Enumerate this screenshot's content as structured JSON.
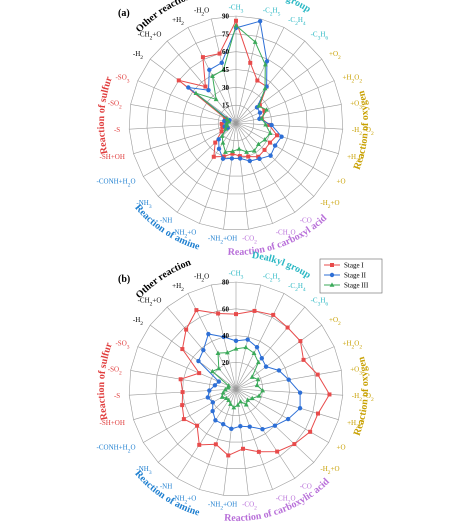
{
  "chart_data": [
    {
      "panel_label": "(a)",
      "type": "radar",
      "rmax": 90,
      "ring_step": 15,
      "tick_labels": [
        "15",
        "30",
        "45",
        "60",
        "75",
        "90"
      ],
      "categories": [
        "-CH3",
        "-C2H5",
        "-C2H4",
        "-C3H6",
        "+O2",
        "+H2O2",
        "+O3",
        "-H2+O2",
        "+H2O",
        "+O",
        "-H2+O",
        "-CO",
        "-CH2O",
        "-CO2",
        "-NH2+OH",
        "-NH2+O",
        "-NH",
        "-NH3",
        "-CONH+H2O",
        "-SH+OH",
        "-S",
        "-SO2",
        "-SO3",
        "-H2",
        "-CH2+O",
        "+H2",
        "-H2O"
      ],
      "groups": [
        {
          "name": "Dealkyl group",
          "color": "#2BB8C4",
          "categories": [
            "-CH3",
            "-C2H5",
            "-C2H4",
            "-C3H6"
          ]
        },
        {
          "name": "Reaction of oxygen",
          "color": "#C8A000",
          "categories": [
            "+O2",
            "+H2O2",
            "+O3",
            "-H2+O2",
            "+H2O",
            "+O",
            "-H2+O"
          ]
        },
        {
          "name": "Reaction of carboxyl acid",
          "color": "#B86FD9",
          "categories": [
            "-CO",
            "-CH2O",
            "-CO2"
          ]
        },
        {
          "name": "Reaction of amine",
          "color": "#1E7FD0",
          "categories": [
            "-NH2+OH",
            "-NH2+O",
            "-NH",
            "-NH3",
            "-CONH+H2O"
          ]
        },
        {
          "name": "Reaction of sulfur",
          "color": "#E03C3C",
          "categories": [
            "-SH+OH",
            "-S",
            "-SO2",
            "-SO3"
          ]
        },
        {
          "name": "Other reaction",
          "color": "#000000",
          "categories": [
            "-H2",
            "-CH2+O",
            "+H2",
            "-H2O"
          ]
        }
      ],
      "series": [
        {
          "name": "Stage I",
          "color": "#E84B4B",
          "marker": "square",
          "values": [
            86,
            52,
            40,
            40,
            25,
            26,
            22,
            28,
            36,
            33,
            33,
            34,
            30,
            28,
            26,
            30,
            34,
            24,
            14,
            12,
            12,
            8,
            10,
            60,
            40,
            62,
            60
          ]
        },
        {
          "name": "Stage II",
          "color": "#2D6FD6",
          "marker": "circle",
          "values": [
            80,
            88,
            58,
            40,
            22,
            22,
            20,
            30,
            40,
            38,
            40,
            36,
            34,
            30,
            30,
            32,
            26,
            20,
            8,
            10,
            8,
            10,
            6,
            50,
            36,
            50,
            52
          ]
        },
        {
          "name": "Stage III",
          "color": "#3BAA5A",
          "marker": "triangle",
          "values": [
            82,
            70,
            55,
            38,
            24,
            28,
            22,
            25,
            30,
            28,
            26,
            28,
            26,
            22,
            24,
            26,
            20,
            16,
            10,
            8,
            8,
            6,
            8,
            42,
            26,
            44,
            46
          ]
        }
      ]
    },
    {
      "panel_label": "(b)",
      "type": "radar",
      "rmax": 80,
      "ring_step": 20,
      "tick_labels": [
        "20",
        "40",
        "60",
        "80"
      ],
      "categories": [
        "-CH3",
        "-C2H5",
        "-C2H4",
        "-C3H6",
        "+O2",
        "+H2O2",
        "+O3",
        "-H2+O2",
        "+H2O",
        "+O",
        "-H2+O",
        "-CO",
        "-CH2O",
        "-CO2",
        "-NH2+OH",
        "-NH2+O",
        "-NH",
        "-NH3",
        "-CONH+H2O",
        "-SH+OH",
        "-S",
        "-SO2",
        "-SO3",
        "-H2",
        "-CH2+O",
        "+H2",
        "-H2O"
      ],
      "groups": [
        {
          "name": "Dealkyl group",
          "color": "#2BB8C4",
          "categories": [
            "-CH3",
            "-C2H5",
            "-C2H4",
            "-C3H6"
          ]
        },
        {
          "name": "Reaction of oxygen",
          "color": "#C8A000",
          "categories": [
            "+O2",
            "+H2O2",
            "+O3",
            "-H2+O2",
            "+H2O",
            "+O",
            "-H2+O"
          ]
        },
        {
          "name": "Reaction of carboxylic acid",
          "color": "#B86FD9",
          "categories": [
            "-CO",
            "-CH2O",
            "-CO2"
          ]
        },
        {
          "name": "Reaction of amine",
          "color": "#1E7FD0",
          "categories": [
            "-NH2+OH",
            "-NH2+O",
            "-NH",
            "-NH3",
            "-CONH+H2O"
          ]
        },
        {
          "name": "Reaction of sulfur",
          "color": "#E03C3C",
          "categories": [
            "-SH+OH",
            "-S",
            "-SO2",
            "-SO3"
          ]
        },
        {
          "name": "Other reaction",
          "color": "#000000",
          "categories": [
            "-H2",
            "-CH2+O",
            "+H2",
            "-H2O"
          ]
        }
      ],
      "legend_position": "top-right",
      "series": [
        {
          "name": "Stage I",
          "color": "#E84B4B",
          "marker": "square",
          "values": [
            56,
            60,
            62,
            60,
            60,
            55,
            62,
            70,
            64,
            64,
            60,
            56,
            50,
            45,
            50,
            44,
            50,
            40,
            45,
            42,
            40,
            42,
            30,
            50,
            58,
            66,
            58
          ]
        },
        {
          "name": "Stage II",
          "color": "#2D6FD6",
          "marker": "circle",
          "values": [
            36,
            38,
            35,
            30,
            28,
            35,
            40,
            48,
            50,
            45,
            40,
            36,
            30,
            28,
            30,
            28,
            28,
            24,
            20,
            22,
            20,
            16,
            14,
            35,
            38,
            46,
            40
          ]
        },
        {
          "name": "Stage III",
          "color": "#3BAA5A",
          "marker": "triangle",
          "values": [
            30,
            32,
            30,
            26,
            15,
            18,
            16,
            20,
            18,
            14,
            12,
            14,
            10,
            12,
            14,
            12,
            10,
            10,
            12,
            10,
            8,
            6,
            6,
            22,
            20,
            30,
            28
          ]
        }
      ]
    }
  ]
}
